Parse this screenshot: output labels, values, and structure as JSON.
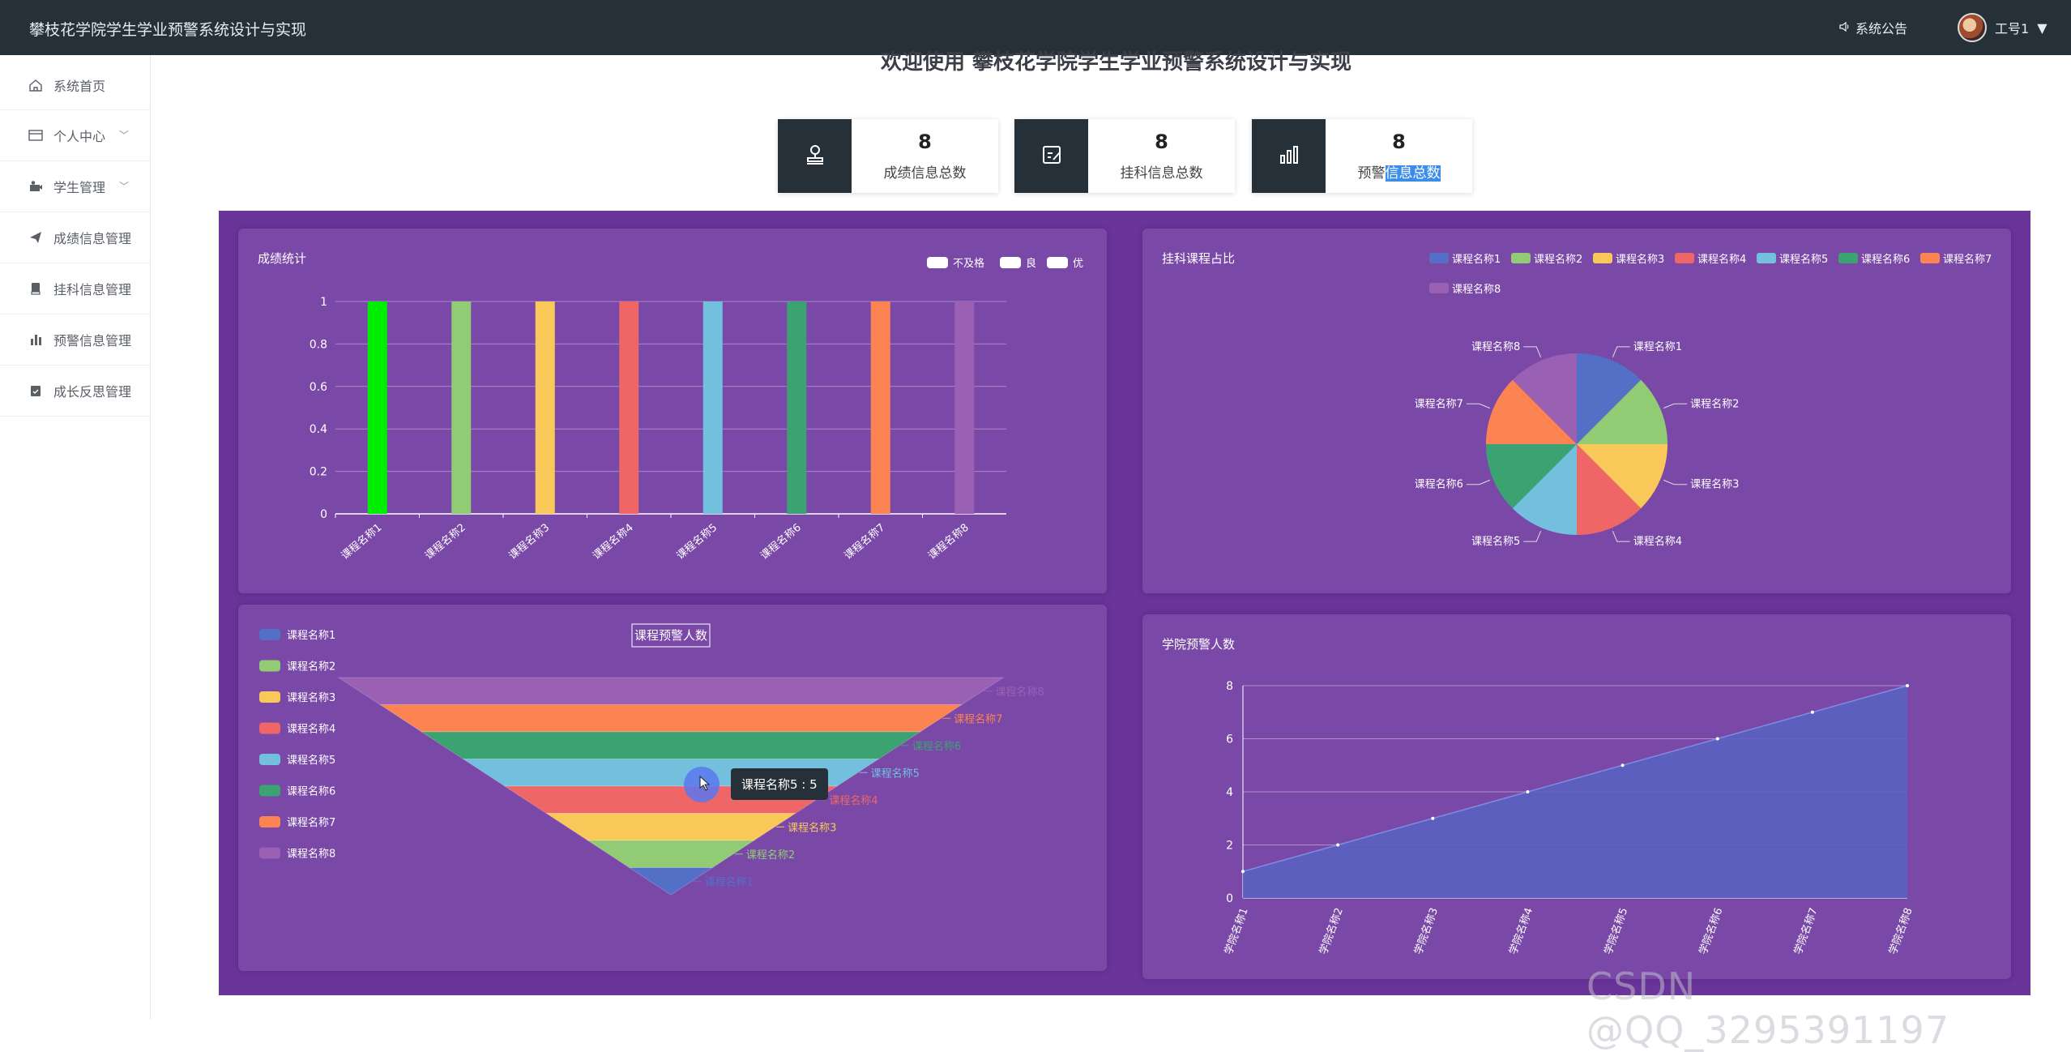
{
  "header": {
    "app_title": "攀枝花学院学生学业预警系统设计与实现",
    "notice_label": "系统公告",
    "user_label": "工号1"
  },
  "sidebar": {
    "items": [
      {
        "label": "系统首页",
        "icon": "home-icon"
      },
      {
        "label": "个人中心",
        "icon": "profile-icon",
        "has_children": true
      },
      {
        "label": "学生管理",
        "icon": "student-icon",
        "has_children": true
      },
      {
        "label": "成绩信息管理",
        "icon": "send-icon"
      },
      {
        "label": "挂科信息管理",
        "icon": "book-icon"
      },
      {
        "label": "预警信息管理",
        "icon": "bar-chart-icon"
      },
      {
        "label": "成长反思管理",
        "icon": "clipboard-icon"
      }
    ]
  },
  "main": {
    "welcome": "欢迎使用 攀枝花学院学生学业预警系统设计与实现",
    "stats": [
      {
        "value": "8",
        "label": "成绩信息总数",
        "icon": "stamp-icon"
      },
      {
        "value": "8",
        "label": "挂科信息总数",
        "icon": "edit-icon"
      },
      {
        "value": "8",
        "label": "预警信息总数",
        "label_plain": "预警",
        "label_selected": "信息总数",
        "icon": "bar-chart-icon"
      }
    ]
  },
  "colors": {
    "topbar": "#263039",
    "stage": "#6a349a",
    "panel": "#7a49a8",
    "palette": [
      "#5470c6",
      "#91cc75",
      "#fac858",
      "#ee6666",
      "#73c0de",
      "#3ba272",
      "#fc8452",
      "#9a60b4"
    ]
  },
  "chart_data": [
    {
      "type": "bar",
      "title": "成绩统计",
      "legend": [
        "不及格",
        "良",
        "优"
      ],
      "categories": [
        "课程名称1",
        "课程名称2",
        "课程名称3",
        "课程名称4",
        "课程名称5",
        "课程名称6",
        "课程名称7",
        "课程名称8"
      ],
      "values": [
        1,
        1,
        1,
        1,
        1,
        1,
        1,
        1
      ],
      "bar_colors": [
        "#00ee00",
        "#91cc75",
        "#fac858",
        "#ee6666",
        "#73c0de",
        "#3ba272",
        "#fc8452",
        "#9a60b4"
      ],
      "yticks": [
        "0",
        "0.2",
        "0.4",
        "0.6",
        "0.8",
        "1"
      ],
      "ylim": [
        0,
        1
      ],
      "legend_position": "top-right"
    },
    {
      "type": "pie",
      "title": "挂科课程占比",
      "labels": [
        "课程名称1",
        "课程名称2",
        "课程名称3",
        "课程名称4",
        "课程名称5",
        "课程名称6",
        "课程名称7",
        "课程名称8"
      ],
      "values": [
        1,
        1,
        1,
        1,
        1,
        1,
        1,
        1
      ],
      "legend_position": "top-right"
    },
    {
      "type": "funnel",
      "title": "课程预警人数",
      "labels": [
        "课程名称1",
        "课程名称2",
        "课程名称3",
        "课程名称4",
        "课程名称5",
        "课程名称6",
        "课程名称7",
        "课程名称8"
      ],
      "values": [
        1,
        2,
        3,
        4,
        5,
        6,
        7,
        8
      ],
      "tooltip": "课程名称5 : 5",
      "legend_position": "left"
    },
    {
      "type": "area",
      "title": "学院预警人数",
      "categories": [
        "学院名称1",
        "学院名称2",
        "学院名称3",
        "学院名称4",
        "学院名称5",
        "学院名称6",
        "学院名称7",
        "学院名称8"
      ],
      "values": [
        1,
        2,
        3,
        4,
        5,
        6,
        7,
        8
      ],
      "yticks": [
        "0",
        "2",
        "4",
        "6",
        "8"
      ],
      "ylim": [
        0,
        8
      ]
    }
  ],
  "watermark": "CSDN @QQ_3295391197"
}
